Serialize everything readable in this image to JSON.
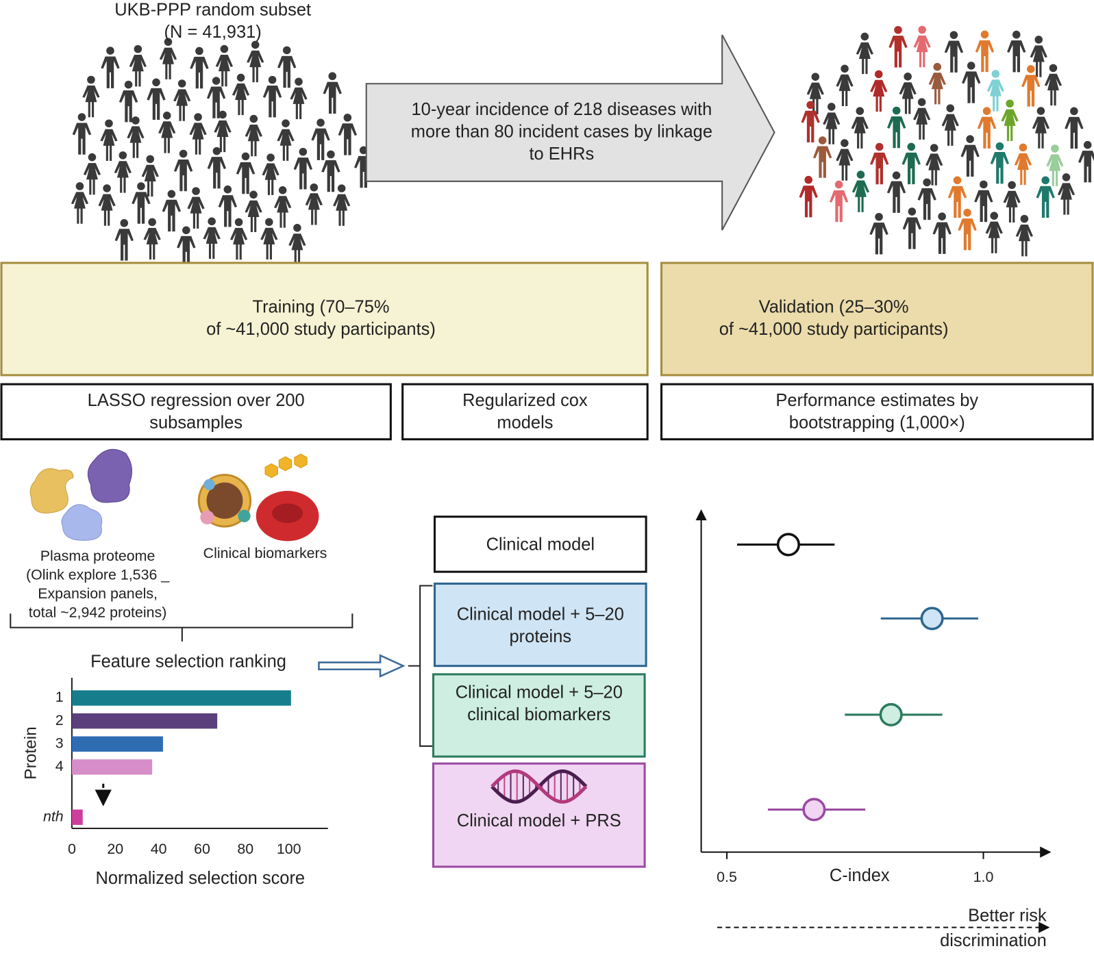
{
  "cohort": {
    "title": "UKB-PPP random subset",
    "size": "(N = 41,931)"
  },
  "incidence_arrow": [
    "10-year incidence of 218 diseases with",
    "more than 80 incident cases by linkage",
    "to EHRs"
  ],
  "training": [
    "Training (70–75%",
    "of ~41,000 study participants)"
  ],
  "validation": [
    "Validation (25–30%",
    "of ~41,000 study participants)"
  ],
  "methods": [
    "LASSO regression over 200 subsamples",
    "Regularized cox models",
    "Performance estimates by bootstrapping (1,000×)"
  ],
  "inputs": {
    "proteome": [
      "Plasma proteome",
      "(Olink explore 1,536 _",
      "Expansion panels,",
      "total ~2,942 proteins)"
    ],
    "biomarkers": "Clinical biomarkers"
  },
  "chart_data": [
    {
      "type": "bar",
      "orientation": "horizontal",
      "title": "Feature selection ranking",
      "ylabel": "Protein",
      "xlabel": "Normalized selection score",
      "categories": [
        "1",
        "2",
        "3",
        "4",
        "nth"
      ],
      "values": [
        101,
        67,
        42,
        37,
        5
      ],
      "colors": [
        "#167d8c",
        "#5b3f7d",
        "#2f6db3",
        "#d68ec9",
        "#cc3f9c"
      ],
      "xlim": [
        0,
        118
      ],
      "xticks": [
        0,
        20,
        40,
        60,
        80,
        100
      ]
    },
    {
      "type": "forest",
      "xlabel": "C-index",
      "annotation": "Better risk discrimination",
      "categories": [
        "Clinical model",
        "Clinical model + 5–20 proteins",
        "Clinical model + 5–20 clinical biomarkers",
        "Clinical model + PRS"
      ],
      "values": [
        0.62,
        0.9,
        0.82,
        0.67
      ],
      "lower": [
        0.52,
        0.8,
        0.73,
        0.58
      ],
      "upper": [
        0.71,
        0.99,
        0.92,
        0.77
      ],
      "colors": [
        "#111111",
        "#2d6690",
        "#2c7a5e",
        "#9a4aa2"
      ],
      "fill_colors": [
        "#ffffff",
        "#cfe4f4",
        "#cdeee0",
        "#f0d6f2"
      ],
      "xlim": [
        0.45,
        1.13
      ],
      "xticks": [
        0.5,
        {
          "value": 1,
          "label": "1.0"
        }
      ]
    }
  ]
}
